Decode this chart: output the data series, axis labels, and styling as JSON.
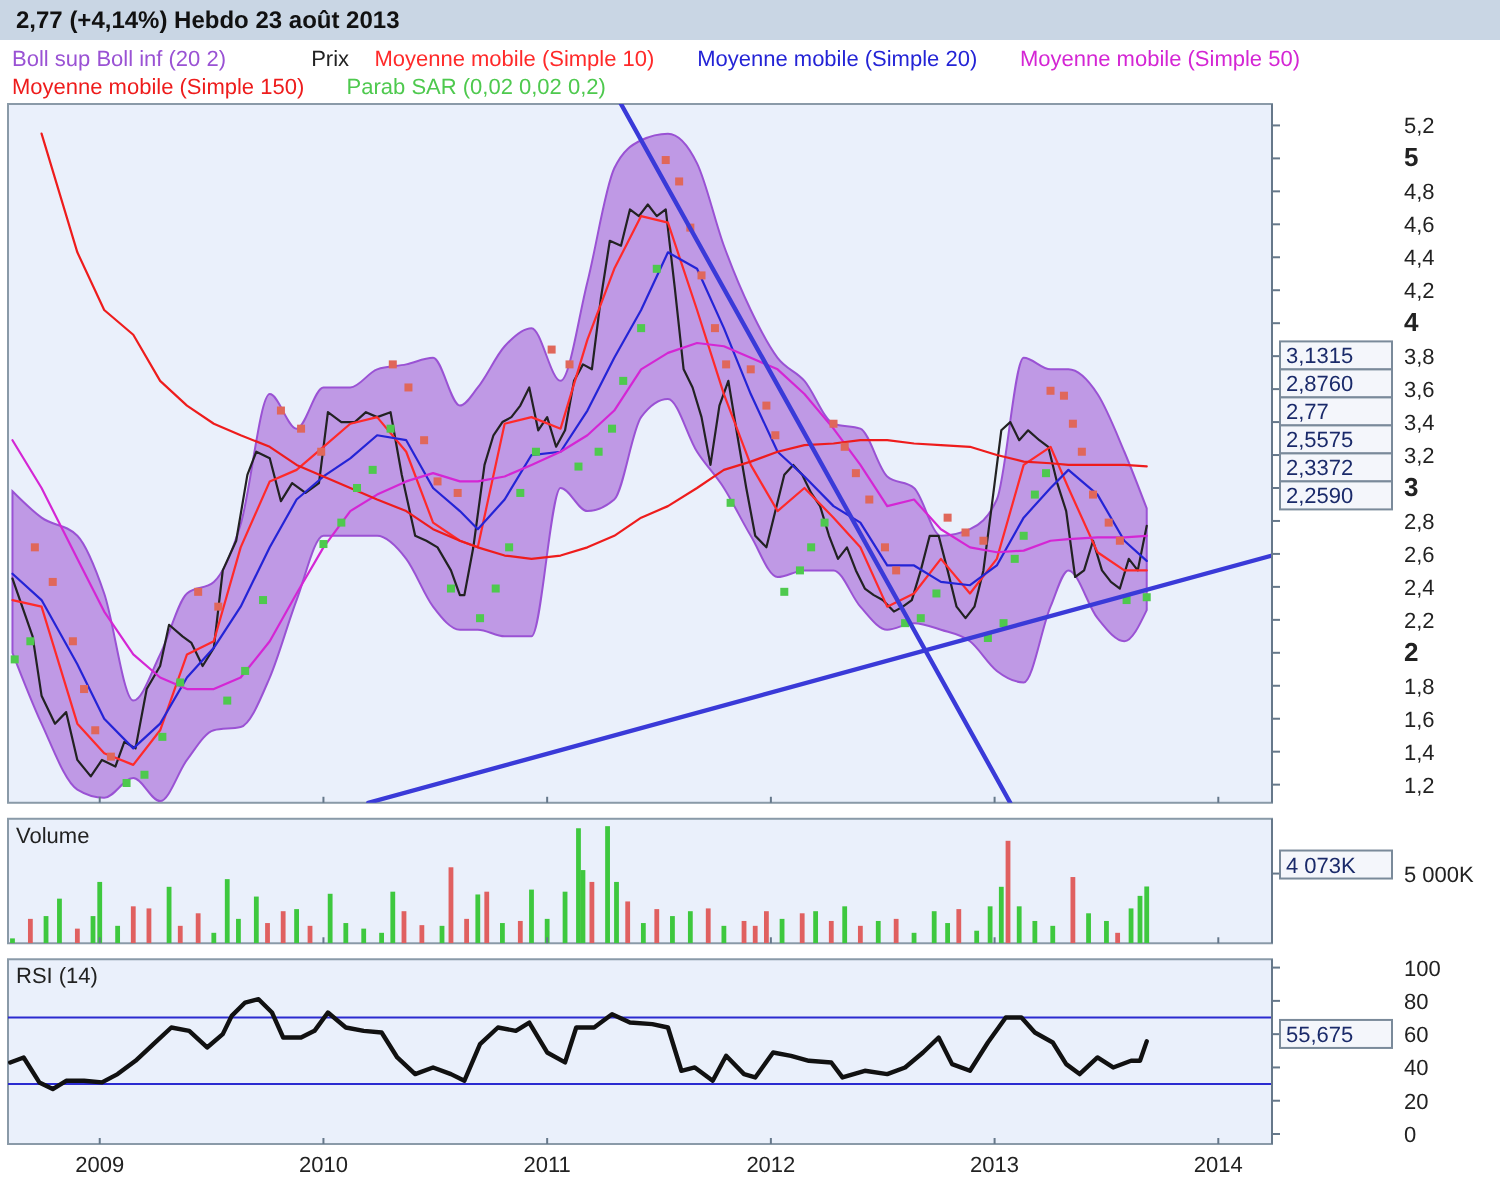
{
  "chart_data": [
    {
      "type": "line",
      "title": "2,77 (+4,14%)   Hebdo  23 août 2013",
      "legend": "top left",
      "tick_labels": "y",
      "xlim": [
        2008.59,
        2014.24
      ],
      "xticks": [
        2009,
        2010,
        2011,
        2012,
        2013,
        2014
      ],
      "ylim": [
        1.09,
        5.33
      ],
      "yticks": [
        {
          "value": 1.2,
          "label": "1,2"
        },
        {
          "value": 1.4,
          "label": "1,4"
        },
        {
          "value": 1.6,
          "label": "1,6"
        },
        {
          "value": 1.8,
          "label": "1,8"
        },
        2,
        {
          "value": 2.2,
          "label": "2,2"
        },
        {
          "value": 2.4,
          "label": "2,4"
        },
        {
          "value": 2.6,
          "label": "2,6"
        },
        {
          "value": 2.8,
          "label": "2,8"
        },
        3,
        {
          "value": 3.2,
          "label": "3,2"
        },
        {
          "value": 3.4,
          "label": "3,4"
        },
        {
          "value": 3.6,
          "label": "3,6"
        },
        {
          "value": 3.8,
          "label": "3,8"
        },
        4,
        {
          "value": 4.2,
          "label": "4,2"
        },
        {
          "value": 4.4,
          "label": "4,4"
        },
        {
          "value": 4.6,
          "label": "4,6"
        },
        {
          "value": 4.8,
          "label": "4,8"
        },
        5,
        {
          "value": 5.2,
          "label": "5,2"
        }
      ],
      "series": [
        {
          "name": "Boll sup Boll inf (20 2)",
          "color": "#9a52d4",
          "x": [
            2008.61,
            2008.74,
            2008.9,
            2009.02,
            2009.15,
            2009.27,
            2009.39,
            2009.51,
            2009.63,
            2009.76,
            2009.88,
            2010.0,
            2010.12,
            2010.24,
            2010.37,
            2010.49,
            2010.61,
            2010.69,
            2010.81,
            2010.93,
            2011.06,
            2011.18,
            2011.3,
            2011.42,
            2011.54,
            2011.67,
            2011.79,
            2011.91,
            2012.03,
            2012.15,
            2012.28,
            2012.4,
            2012.52,
            2012.64,
            2012.76,
            2012.89,
            2013.01,
            2013.13,
            2013.25,
            2013.33,
            2013.46,
            2013.58,
            2013.68
          ],
          "values": [
            null,
            null,
            null,
            null,
            null,
            null,
            null,
            null,
            null,
            null,
            null,
            null,
            null,
            null,
            null,
            null,
            null,
            null,
            null,
            null,
            null,
            null,
            null,
            null,
            null,
            null,
            null,
            null,
            null,
            null,
            null,
            null,
            null,
            null,
            null,
            null,
            null,
            null,
            null,
            null,
            null,
            null,
            null
          ],
          "upper": [
            2.98,
            2.82,
            2.71,
            2.36,
            1.71,
            1.99,
            2.36,
            2.43,
            2.78,
            3.57,
            3.36,
            3.61,
            3.61,
            3.72,
            3.75,
            3.79,
            3.5,
            3.61,
            3.86,
            3.97,
            3.65,
            4.25,
            4.94,
            5.11,
            5.15,
            4.97,
            4.47,
            4.08,
            3.79,
            3.65,
            3.39,
            3.36,
            3.07,
            3.0,
            2.71,
            2.75,
            2.93,
            3.79,
            3.72,
            3.72,
            3.57,
            3.22,
            2.876
          ],
          "lower": [
            2.0,
            1.57,
            1.17,
            1.12,
            1.24,
            1.1,
            1.35,
            1.53,
            1.55,
            1.85,
            2.32,
            2.71,
            2.71,
            2.71,
            2.57,
            2.28,
            2.14,
            2.14,
            2.1,
            2.1,
            3.0,
            2.86,
            2.93,
            3.43,
            3.54,
            3.22,
            3.0,
            2.71,
            2.46,
            2.5,
            2.5,
            2.28,
            2.14,
            2.18,
            2.14,
            2.07,
            1.89,
            1.82,
            2.28,
            2.5,
            2.21,
            2.07,
            2.259
          ]
        },
        {
          "name": "Prix",
          "color": "#222222",
          "x": [
            2008.61,
            2008.7,
            2008.74,
            2008.8,
            2008.85,
            2008.9,
            2008.96,
            2009.01,
            2009.07,
            2009.11,
            2009.16,
            2009.21,
            2009.27,
            2009.31,
            2009.37,
            2009.41,
            2009.46,
            2009.51,
            2009.55,
            2009.61,
            2009.66,
            2009.7,
            2009.76,
            2009.81,
            2009.86,
            2009.92,
            2009.98,
            2010.02,
            2010.08,
            2010.14,
            2010.19,
            2010.24,
            2010.3,
            2010.35,
            2010.41,
            2010.46,
            2010.51,
            2010.57,
            2010.61,
            2010.63,
            2010.67,
            2010.72,
            2010.76,
            2010.8,
            2010.84,
            2010.88,
            2010.92,
            2010.96,
            2011.0,
            2011.04,
            2011.08,
            2011.12,
            2011.16,
            2011.2,
            2011.24,
            2011.28,
            2011.33,
            2011.37,
            2011.41,
            2011.45,
            2011.49,
            2011.53,
            2011.57,
            2011.61,
            2011.65,
            2011.69,
            2011.73,
            2011.77,
            2011.81,
            2011.85,
            2011.89,
            2011.93,
            2011.98,
            2012.02,
            2012.06,
            2012.1,
            2012.14,
            2012.18,
            2012.22,
            2012.26,
            2012.3,
            2012.34,
            2012.38,
            2012.42,
            2012.46,
            2012.5,
            2012.55,
            2012.59,
            2012.63,
            2012.67,
            2012.71,
            2012.75,
            2012.79,
            2012.83,
            2012.87,
            2012.91,
            2012.95,
            2012.99,
            2013.03,
            2013.07,
            2013.11,
            2013.15,
            2013.2,
            2013.24,
            2013.28,
            2013.32,
            2013.36,
            2013.4,
            2013.44,
            2013.48,
            2013.52,
            2013.56,
            2013.6,
            2013.64,
            2013.68
          ],
          "values": [
            2.45,
            2.1,
            1.74,
            1.57,
            1.64,
            1.35,
            1.25,
            1.35,
            1.31,
            1.46,
            1.42,
            1.78,
            1.92,
            2.17,
            2.1,
            2.06,
            1.92,
            2.03,
            2.5,
            2.68,
            3.08,
            3.22,
            3.18,
            2.92,
            3.03,
            2.97,
            3.03,
            3.46,
            3.4,
            3.4,
            3.46,
            3.43,
            3.46,
            3.08,
            2.71,
            2.68,
            2.64,
            2.5,
            2.35,
            2.35,
            2.64,
            3.14,
            3.32,
            3.4,
            3.43,
            3.5,
            3.61,
            3.35,
            3.43,
            3.25,
            3.35,
            3.65,
            3.75,
            3.72,
            4.15,
            4.5,
            4.47,
            4.69,
            4.65,
            4.72,
            4.65,
            4.69,
            4.22,
            3.72,
            3.61,
            3.43,
            3.14,
            3.5,
            3.65,
            3.32,
            3.0,
            2.71,
            2.64,
            2.86,
            3.08,
            3.14,
            3.08,
            2.97,
            2.89,
            2.71,
            2.57,
            2.64,
            2.5,
            2.39,
            2.35,
            2.32,
            2.25,
            2.28,
            2.32,
            2.5,
            2.71,
            2.71,
            2.5,
            2.28,
            2.21,
            2.28,
            2.5,
            2.92,
            3.35,
            3.4,
            3.29,
            3.35,
            3.29,
            3.25,
            3.03,
            2.86,
            2.46,
            2.5,
            2.68,
            2.5,
            2.43,
            2.39,
            2.57,
            2.5,
            2.77
          ]
        },
        {
          "name": "Moyenne mobile (Simple 10)",
          "color": "#ff2a2a",
          "x": [
            2008.61,
            2008.74,
            2008.9,
            2009.02,
            2009.15,
            2009.27,
            2009.39,
            2009.51,
            2009.63,
            2009.76,
            2009.88,
            2010.0,
            2010.12,
            2010.24,
            2010.37,
            2010.49,
            2010.61,
            2010.69,
            2010.81,
            2010.93,
            2011.06,
            2011.18,
            2011.3,
            2011.42,
            2011.54,
            2011.67,
            2011.79,
            2011.91,
            2012.03,
            2012.15,
            2012.28,
            2012.4,
            2012.52,
            2012.64,
            2012.76,
            2012.89,
            2013.01,
            2013.13,
            2013.25,
            2013.33,
            2013.46,
            2013.58,
            2013.68
          ],
          "values": [
            2.32,
            2.28,
            1.57,
            1.39,
            1.32,
            1.53,
            1.99,
            2.07,
            2.64,
            3.04,
            3.11,
            3.25,
            3.39,
            3.43,
            3.22,
            2.79,
            2.68,
            2.64,
            3.39,
            3.43,
            3.36,
            3.9,
            4.33,
            4.65,
            4.61,
            4.08,
            3.57,
            3.14,
            2.86,
            3.0,
            2.82,
            2.64,
            2.28,
            2.36,
            2.57,
            2.36,
            2.57,
            3.14,
            3.25,
            3.0,
            2.61,
            2.5,
            2.5
          ]
        },
        {
          "name": "Moyenne mobile (Simple 20)",
          "color": "#2424d6",
          "x": [
            2008.61,
            2008.74,
            2008.9,
            2009.02,
            2009.15,
            2009.27,
            2009.39,
            2009.51,
            2009.63,
            2009.76,
            2009.88,
            2010.0,
            2010.12,
            2010.24,
            2010.37,
            2010.49,
            2010.61,
            2010.69,
            2010.81,
            2010.93,
            2011.06,
            2011.18,
            2011.3,
            2011.42,
            2011.54,
            2011.67,
            2011.79,
            2011.91,
            2012.03,
            2012.15,
            2012.28,
            2012.4,
            2012.52,
            2012.64,
            2012.76,
            2012.89,
            2013.01,
            2013.13,
            2013.25,
            2013.33,
            2013.46,
            2013.58,
            2013.68
          ],
          "values": [
            2.48,
            2.32,
            1.93,
            1.6,
            1.42,
            1.57,
            1.85,
            2.03,
            2.28,
            2.64,
            2.93,
            3.07,
            3.18,
            3.32,
            3.29,
            3.0,
            2.86,
            2.75,
            2.93,
            3.2,
            3.22,
            3.47,
            3.79,
            4.08,
            4.43,
            4.33,
            3.97,
            3.57,
            3.22,
            3.07,
            2.89,
            2.79,
            2.53,
            2.53,
            2.43,
            2.41,
            2.53,
            2.82,
            3.0,
            3.11,
            2.96,
            2.68,
            2.5575
          ]
        },
        {
          "name": "Moyenne mobile (Simple 50)",
          "color": "#d426d4",
          "x": [
            2008.61,
            2008.74,
            2008.9,
            2009.02,
            2009.15,
            2009.27,
            2009.39,
            2009.51,
            2009.63,
            2009.76,
            2009.88,
            2010.0,
            2010.12,
            2010.24,
            2010.37,
            2010.49,
            2010.61,
            2010.69,
            2010.81,
            2010.93,
            2011.06,
            2011.18,
            2011.3,
            2011.42,
            2011.54,
            2011.67,
            2011.79,
            2011.91,
            2012.03,
            2012.15,
            2012.28,
            2012.4,
            2012.52,
            2012.64,
            2012.76,
            2012.89,
            2013.01,
            2013.13,
            2013.25,
            2013.33,
            2013.46,
            2013.58,
            2013.68
          ],
          "values": [
            3.29,
            3.0,
            2.57,
            2.25,
            1.99,
            1.85,
            1.78,
            1.78,
            1.85,
            2.07,
            2.36,
            2.64,
            2.86,
            2.96,
            3.04,
            3.09,
            3.04,
            3.04,
            3.07,
            3.14,
            3.22,
            3.32,
            3.47,
            3.72,
            3.82,
            3.88,
            3.86,
            3.79,
            3.72,
            3.57,
            3.36,
            3.14,
            2.89,
            2.93,
            2.75,
            2.64,
            2.61,
            2.62,
            2.68,
            2.69,
            2.7,
            2.7,
            2.71
          ]
        },
        {
          "name": "Moyenne mobile (Simple 150)",
          "color": "#ee1c1c",
          "x": [
            2008.74,
            2008.9,
            2009.02,
            2009.15,
            2009.27,
            2009.39,
            2009.51,
            2009.63,
            2009.76,
            2009.88,
            2010.0,
            2010.12,
            2010.24,
            2010.37,
            2010.49,
            2010.61,
            2010.69,
            2010.81,
            2010.93,
            2011.06,
            2011.18,
            2011.3,
            2011.42,
            2011.54,
            2011.67,
            2011.79,
            2011.91,
            2012.03,
            2012.15,
            2012.28,
            2012.4,
            2012.52,
            2012.64,
            2012.76,
            2012.89,
            2013.01,
            2013.13,
            2013.25,
            2013.33,
            2013.46,
            2013.58,
            2013.68
          ],
          "values": [
            5.15,
            4.43,
            4.08,
            3.93,
            3.65,
            3.5,
            3.39,
            3.32,
            3.25,
            3.14,
            3.07,
            3.0,
            2.93,
            2.86,
            2.75,
            2.68,
            2.64,
            2.59,
            2.57,
            2.59,
            2.64,
            2.71,
            2.82,
            2.89,
            3.0,
            3.11,
            3.16,
            3.22,
            3.26,
            3.27,
            3.29,
            3.29,
            3.27,
            3.26,
            3.25,
            3.2,
            3.16,
            3.15,
            3.14,
            3.14,
            3.14,
            3.1315
          ]
        },
        {
          "name": "Parab SAR (0,02 0,02 0,2)",
          "type": "scatter",
          "marker": "square",
          "color": "#4ec94e",
          "x": [
            2008.62,
            2008.69,
            2008.71,
            2008.79,
            2008.88,
            2008.93,
            2008.98,
            2009.05,
            2009.12,
            2009.2,
            2009.28,
            2009.36,
            2009.44,
            2009.53,
            2009.57,
            2009.65,
            2009.73,
            2009.81,
            2009.9,
            2009.99,
            2010.0,
            2010.08,
            2010.15,
            2010.22,
            2010.3,
            2010.31,
            2010.38,
            2010.45,
            2010.51,
            2010.57,
            2010.6,
            2010.7,
            2010.77,
            2010.83,
            2010.88,
            2010.95,
            2011.02,
            2011.1,
            2011.14,
            2011.23,
            2011.29,
            2011.34,
            2011.42,
            2011.49,
            2011.53,
            2011.59,
            2011.64,
            2011.69,
            2011.75,
            2011.8,
            2011.82,
            2011.91,
            2011.98,
            2012.02,
            2012.06,
            2012.13,
            2012.18,
            2012.24,
            2012.28,
            2012.33,
            2012.38,
            2012.44,
            2012.51,
            2012.56,
            2012.6,
            2012.67,
            2012.74,
            2012.79,
            2012.87,
            2012.95,
            2012.97,
            2013.04,
            2013.09,
            2013.13,
            2013.18,
            2013.23,
            2013.25,
            2013.31,
            2013.35,
            2013.39,
            2013.44,
            2013.51,
            2013.56,
            2013.59,
            2013.68
          ],
          "values": [
            1.96,
            2.07,
            2.64,
            2.43,
            2.07,
            1.78,
            1.53,
            1.37,
            1.21,
            1.26,
            1.49,
            1.82,
            2.37,
            2.28,
            1.71,
            1.89,
            2.32,
            3.47,
            3.36,
            3.22,
            2.66,
            2.79,
            3.0,
            3.11,
            3.36,
            3.75,
            3.61,
            3.29,
            3.04,
            2.39,
            2.97,
            2.21,
            2.39,
            2.64,
            2.97,
            3.22,
            3.84,
            3.75,
            3.13,
            3.22,
            3.36,
            3.65,
            3.97,
            4.33,
            4.99,
            4.86,
            4.58,
            4.29,
            3.97,
            3.75,
            2.91,
            3.72,
            3.5,
            3.32,
            2.37,
            2.5,
            2.64,
            2.79,
            3.39,
            3.25,
            3.09,
            2.93,
            2.64,
            2.5,
            2.18,
            2.21,
            2.36,
            2.82,
            2.73,
            2.68,
            2.09,
            2.18,
            2.57,
            2.71,
            2.96,
            3.09,
            3.59,
            3.56,
            3.39,
            3.22,
            2.96,
            2.79,
            2.68,
            2.32,
            2.3372
          ],
          "colors": [
            "#4ec94e",
            "#4ec94e",
            "#e0675a",
            "#e0675a",
            "#e0675a",
            "#e0675a",
            "#e0675a",
            "#e0675a",
            "#4ec94e",
            "#4ec94e",
            "#4ec94e",
            "#4ec94e",
            "#e0675a",
            "#e0675a",
            "#4ec94e",
            "#4ec94e",
            "#4ec94e",
            "#e0675a",
            "#e0675a",
            "#e0675a",
            "#4ec94e",
            "#4ec94e",
            "#4ec94e",
            "#4ec94e",
            "#4ec94e",
            "#e0675a",
            "#e0675a",
            "#e0675a",
            "#e0675a",
            "#4ec94e",
            "#e0675a",
            "#4ec94e",
            "#4ec94e",
            "#4ec94e",
            "#4ec94e",
            "#4ec94e",
            "#e0675a",
            "#e0675a",
            "#4ec94e",
            "#4ec94e",
            "#4ec94e",
            "#4ec94e",
            "#4ec94e",
            "#4ec94e",
            "#e0675a",
            "#e0675a",
            "#e0675a",
            "#e0675a",
            "#e0675a",
            "#e0675a",
            "#4ec94e",
            "#e0675a",
            "#e0675a",
            "#e0675a",
            "#4ec94e",
            "#4ec94e",
            "#4ec94e",
            "#4ec94e",
            "#e0675a",
            "#e0675a",
            "#e0675a",
            "#e0675a",
            "#e0675a",
            "#e0675a",
            "#4ec94e",
            "#4ec94e",
            "#4ec94e",
            "#e0675a",
            "#e0675a",
            "#e0675a",
            "#4ec94e",
            "#4ec94e",
            "#4ec94e",
            "#4ec94e",
            "#4ec94e",
            "#4ec94e",
            "#e0675a",
            "#e0675a",
            "#e0675a",
            "#e0675a",
            "#e0675a",
            "#e0675a",
            "#e0675a",
            "#4ec94e",
            "#4ec94e"
          ]
        },
        {
          "color": "#3a3ad8",
          "x": [
            2011.33,
            2013.07
          ],
          "values": [
            5.33,
            1.09
          ]
        },
        {
          "color": "#3a3ad8",
          "x": [
            2010.2,
            2014.24
          ],
          "values": [
            1.09,
            2.59
          ]
        }
      ],
      "annotations": [
        "3,1315",
        "2,8760",
        "2,77",
        "2,5575",
        "2,3372",
        "2,2590"
      ]
    },
    {
      "type": "bar",
      "title": "Volume",
      "tick_labels": "y",
      "xlim": [
        2008.59,
        2014.24
      ],
      "xticks": [
        2009,
        2010,
        2011,
        2012,
        2013,
        2014
      ],
      "ylim": [
        0,
        8930
      ],
      "yticks": [
        {
          "value": 5000,
          "label": "5 000K"
        }
      ],
      "series": [
        {
          "x": [
            2008.61,
            2008.69,
            2008.76,
            2008.82,
            2008.9,
            2008.97,
            2009.0,
            2009.08,
            2009.15,
            2009.22,
            2009.31,
            2009.36,
            2009.44,
            2009.51,
            2009.57,
            2009.62,
            2009.7,
            2009.75,
            2009.82,
            2009.88,
            2009.94,
            2010.03,
            2010.1,
            2010.18,
            2010.26,
            2010.31,
            2010.36,
            2010.44,
            2010.53,
            2010.57,
            2010.64,
            2010.69,
            2010.73,
            2010.8,
            2010.88,
            2010.93,
            2011.0,
            2011.08,
            2011.14,
            2011.16,
            2011.2,
            2011.27,
            2011.31,
            2011.36,
            2011.43,
            2011.49,
            2011.56,
            2011.64,
            2011.72,
            2011.79,
            2011.88,
            2011.93,
            2011.98,
            2012.05,
            2012.14,
            2012.2,
            2012.27,
            2012.33,
            2012.4,
            2012.48,
            2012.56,
            2012.64,
            2012.73,
            2012.79,
            2012.84,
            2012.92,
            2012.98,
            2013.03,
            2013.06,
            2013.11,
            2013.18,
            2013.26,
            2013.35,
            2013.42,
            2013.5,
            2013.55,
            2013.61,
            2013.65,
            2013.68
          ],
          "values": [
            350,
            1750,
            1950,
            3200,
            1050,
            1950,
            4400,
            1250,
            2650,
            2500,
            4050,
            1250,
            2150,
            750,
            4600,
            1750,
            3350,
            1450,
            2300,
            2450,
            1250,
            3550,
            1450,
            1050,
            750,
            3700,
            2300,
            1300,
            1250,
            5450,
            1750,
            3500,
            3700,
            1450,
            1600,
            3850,
            1750,
            3700,
            8250,
            5250,
            4400,
            8400,
            4400,
            3000,
            1450,
            2450,
            1950,
            2300,
            2500,
            1250,
            1600,
            1250,
            2300,
            1750,
            2150,
            2300,
            1600,
            2650,
            1250,
            1600,
            1750,
            750,
            2300,
            1450,
            2450,
            900,
            2650,
            4050,
            7350,
            2650,
            1600,
            1250,
            4750,
            2150,
            1600,
            750,
            2500,
            3400,
            4073
          ],
          "colors": [
            "#3ec83e",
            "#e06060",
            "#3ec83e",
            "#3ec83e",
            "#e06060",
            "#3ec83e",
            "#3ec83e",
            "#3ec83e",
            "#e06060",
            "#e06060",
            "#3ec83e",
            "#e06060",
            "#e06060",
            "#3ec83e",
            "#3ec83e",
            "#3ec83e",
            "#3ec83e",
            "#e06060",
            "#e06060",
            "#3ec83e",
            "#e06060",
            "#3ec83e",
            "#3ec83e",
            "#3ec83e",
            "#3ec83e",
            "#3ec83e",
            "#e06060",
            "#e06060",
            "#3ec83e",
            "#e06060",
            "#e06060",
            "#3ec83e",
            "#e06060",
            "#3ec83e",
            "#e06060",
            "#3ec83e",
            "#3ec83e",
            "#3ec83e",
            "#3ec83e",
            "#3ec83e",
            "#e06060",
            "#3ec83e",
            "#3ec83e",
            "#e06060",
            "#3ec83e",
            "#e06060",
            "#3ec83e",
            "#3ec83e",
            "#e06060",
            "#3ec83e",
            "#e06060",
            "#e06060",
            "#e06060",
            "#3ec83e",
            "#e06060",
            "#3ec83e",
            "#e06060",
            "#3ec83e",
            "#e06060",
            "#3ec83e",
            "#e06060",
            "#3ec83e",
            "#3ec83e",
            "#3ec83e",
            "#e06060",
            "#3ec83e",
            "#3ec83e",
            "#3ec83e",
            "#e06060",
            "#3ec83e",
            "#3ec83e",
            "#3ec83e",
            "#e06060",
            "#3ec83e",
            "#3ec83e",
            "#e06060",
            "#3ec83e",
            "#3ec83e",
            "#3ec83e"
          ]
        }
      ],
      "annotations": [
        "4 073K"
      ]
    },
    {
      "type": "line",
      "title": "RSI (14)",
      "xlim": [
        2008.59,
        2014.24
      ],
      "xticks": [
        2009,
        2010,
        2011,
        2012,
        2013,
        2014
      ],
      "ylim": [
        -6,
        105
      ],
      "yticks": [
        0,
        20,
        40,
        60,
        80,
        100
      ],
      "series": [
        {
          "color": "#111111",
          "x": [
            2008.6,
            2008.66,
            2008.73,
            2008.79,
            2008.85,
            2008.93,
            2009.01,
            2009.08,
            2009.16,
            2009.24,
            2009.32,
            2009.4,
            2009.48,
            2009.55,
            2009.59,
            2009.65,
            2009.71,
            2009.77,
            2009.82,
            2009.9,
            2009.96,
            2010.02,
            2010.1,
            2010.18,
            2010.26,
            2010.33,
            2010.41,
            2010.49,
            2010.57,
            2010.63,
            2010.7,
            2010.78,
            2010.86,
            2010.92,
            2011.0,
            2011.08,
            2011.13,
            2011.21,
            2011.29,
            2011.37,
            2011.47,
            2011.54,
            2011.6,
            2011.66,
            2011.74,
            2011.8,
            2011.88,
            2011.93,
            2012.01,
            2012.09,
            2012.17,
            2012.27,
            2012.32,
            2012.42,
            2012.52,
            2012.6,
            2012.68,
            2012.75,
            2012.81,
            2012.89,
            2012.97,
            2013.05,
            2013.12,
            2013.18,
            2013.26,
            2013.32,
            2013.38,
            2013.46,
            2013.53,
            2013.61,
            2013.65,
            2013.68
          ],
          "values": [
            43,
            46,
            31,
            27,
            32,
            32,
            31,
            36,
            44,
            54,
            64,
            62,
            52,
            60,
            71,
            79,
            81,
            73,
            58,
            58,
            62,
            73,
            64,
            62,
            61,
            46,
            36,
            40,
            36,
            32,
            54,
            64,
            62,
            67,
            49,
            43,
            64,
            64,
            72,
            67,
            66,
            64,
            38,
            40,
            32,
            47,
            36,
            34,
            49,
            47,
            44,
            43,
            34,
            38,
            36,
            40,
            49,
            58,
            42,
            38,
            55,
            70,
            70,
            61,
            55,
            42,
            36,
            46,
            40,
            44,
            44,
            55.675
          ]
        }
      ],
      "ref_lines": [
        {
          "axis": "y",
          "value": 70,
          "color": "#2b2bd0"
        },
        {
          "axis": "y",
          "value": 30,
          "color": "#2b2bd0"
        }
      ],
      "annotations": [
        "55,675"
      ]
    }
  ]
}
